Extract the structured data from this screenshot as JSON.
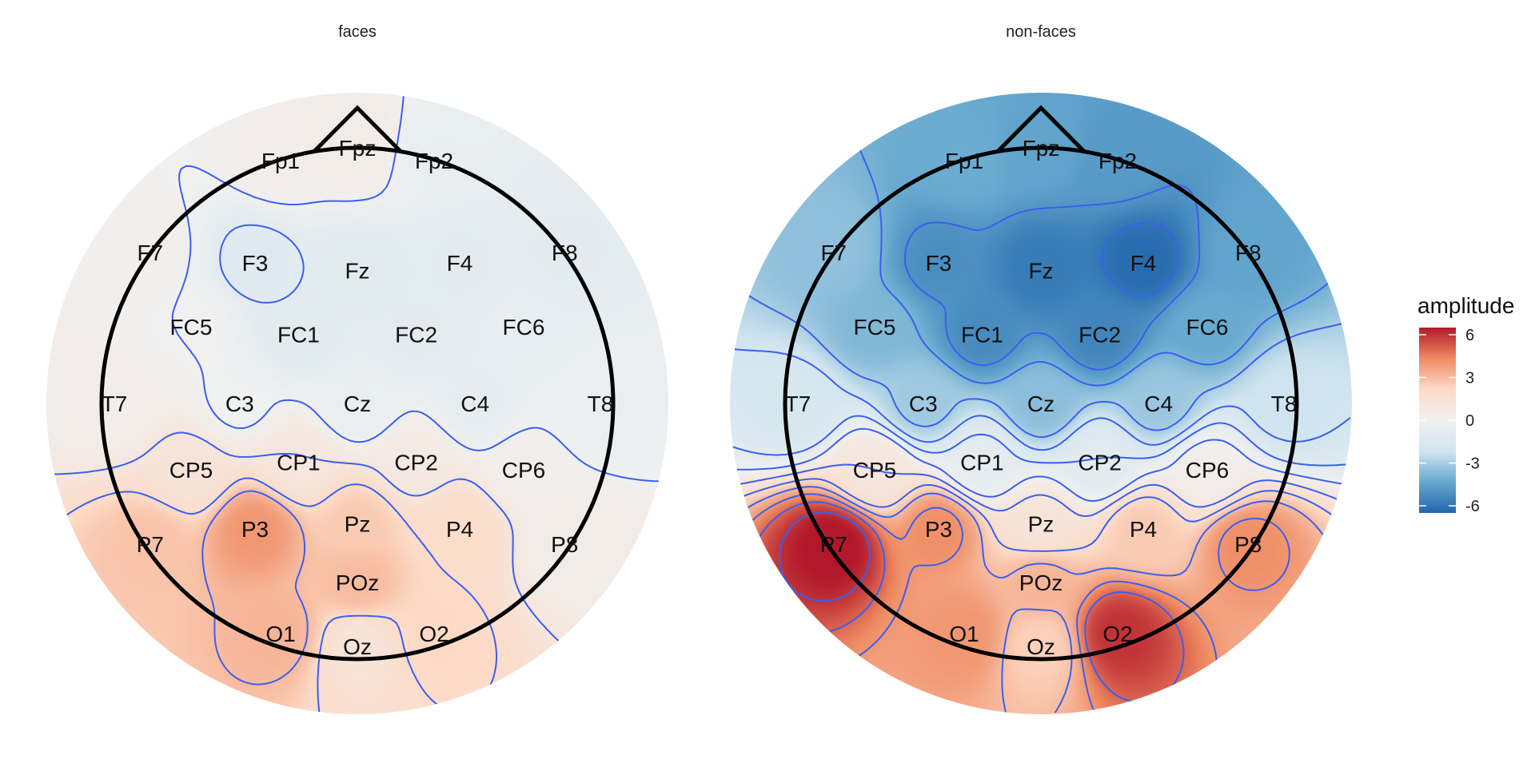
{
  "chart_data": [
    {
      "type": "heatmap",
      "subtype": "eeg-topographic-map",
      "title": "faces",
      "electrodes": [
        {
          "label": "Fp1",
          "x": -0.3,
          "y": 0.95,
          "value": 0.3
        },
        {
          "label": "Fpz",
          "x": 0.0,
          "y": 1.0,
          "value": 0.5
        },
        {
          "label": "Fp2",
          "x": 0.3,
          "y": 0.95,
          "value": -0.5
        },
        {
          "label": "F7",
          "x": -0.81,
          "y": 0.59,
          "value": 0.2
        },
        {
          "label": "F3",
          "x": -0.4,
          "y": 0.55,
          "value": -1.2
        },
        {
          "label": "Fz",
          "x": 0.0,
          "y": 0.52,
          "value": -1.0
        },
        {
          "label": "F4",
          "x": 0.4,
          "y": 0.55,
          "value": -0.9
        },
        {
          "label": "F8",
          "x": 0.81,
          "y": 0.59,
          "value": -0.9
        },
        {
          "label": "FC5",
          "x": -0.65,
          "y": 0.3,
          "value": 0.0
        },
        {
          "label": "FC1",
          "x": -0.23,
          "y": 0.27,
          "value": -1.0
        },
        {
          "label": "FC2",
          "x": 0.23,
          "y": 0.27,
          "value": -0.9
        },
        {
          "label": "FC6",
          "x": 0.65,
          "y": 0.3,
          "value": -0.6
        },
        {
          "label": "T7",
          "x": -0.95,
          "y": 0.0,
          "value": 0.3
        },
        {
          "label": "C3",
          "x": -0.46,
          "y": 0.0,
          "value": -0.1
        },
        {
          "label": "Cz",
          "x": 0.0,
          "y": 0.0,
          "value": -0.5
        },
        {
          "label": "C4",
          "x": 0.46,
          "y": 0.0,
          "value": -0.7
        },
        {
          "label": "T8",
          "x": 0.95,
          "y": 0.0,
          "value": -0.4
        },
        {
          "label": "CP5",
          "x": -0.65,
          "y": -0.26,
          "value": 1.2
        },
        {
          "label": "CP1",
          "x": -0.23,
          "y": -0.23,
          "value": 1.0
        },
        {
          "label": "CP2",
          "x": 0.23,
          "y": -0.23,
          "value": 0.7
        },
        {
          "label": "CP6",
          "x": 0.65,
          "y": -0.26,
          "value": 0.2
        },
        {
          "label": "P7",
          "x": -0.81,
          "y": -0.55,
          "value": 2.8
        },
        {
          "label": "P3",
          "x": -0.4,
          "y": -0.49,
          "value": 4.0
        },
        {
          "label": "Pz",
          "x": 0.0,
          "y": -0.47,
          "value": 2.6
        },
        {
          "label": "P4",
          "x": 0.4,
          "y": -0.49,
          "value": 2.0
        },
        {
          "label": "P8",
          "x": 0.81,
          "y": -0.55,
          "value": 0.4
        },
        {
          "label": "POz",
          "x": 0.0,
          "y": -0.7,
          "value": 3.0
        },
        {
          "label": "O1",
          "x": -0.3,
          "y": -0.9,
          "value": 3.2
        },
        {
          "label": "Oz",
          "x": 0.0,
          "y": -0.95,
          "value": 1.2
        },
        {
          "label": "O2",
          "x": 0.3,
          "y": -0.9,
          "value": 2.2
        }
      ]
    },
    {
      "type": "heatmap",
      "subtype": "eeg-topographic-map",
      "title": "non-faces",
      "electrodes": [
        {
          "label": "Fp1",
          "x": -0.3,
          "y": 0.95,
          "value": -4.2
        },
        {
          "label": "Fpz",
          "x": 0.0,
          "y": 1.0,
          "value": -4.5
        },
        {
          "label": "Fp2",
          "x": 0.3,
          "y": 0.95,
          "value": -4.8
        },
        {
          "label": "F7",
          "x": -0.81,
          "y": 0.59,
          "value": -3.5
        },
        {
          "label": "F3",
          "x": -0.4,
          "y": 0.55,
          "value": -5.2
        },
        {
          "label": "Fz",
          "x": 0.0,
          "y": 0.52,
          "value": -5.8
        },
        {
          "label": "F4",
          "x": 0.4,
          "y": 0.55,
          "value": -6.3
        },
        {
          "label": "F8",
          "x": 0.81,
          "y": 0.59,
          "value": -4.5
        },
        {
          "label": "FC5",
          "x": -0.65,
          "y": 0.3,
          "value": -3.8
        },
        {
          "label": "FC1",
          "x": -0.23,
          "y": 0.27,
          "value": -5.3
        },
        {
          "label": "FC2",
          "x": 0.23,
          "y": 0.27,
          "value": -5.5
        },
        {
          "label": "FC6",
          "x": 0.65,
          "y": 0.3,
          "value": -4.3
        },
        {
          "label": "T7",
          "x": -0.95,
          "y": 0.0,
          "value": -1.8
        },
        {
          "label": "C3",
          "x": -0.46,
          "y": 0.0,
          "value": -3.2
        },
        {
          "label": "Cz",
          "x": 0.0,
          "y": 0.0,
          "value": -3.6
        },
        {
          "label": "C4",
          "x": 0.46,
          "y": 0.0,
          "value": -3.3
        },
        {
          "label": "T8",
          "x": 0.95,
          "y": 0.0,
          "value": -2.2
        },
        {
          "label": "CP5",
          "x": -0.65,
          "y": -0.26,
          "value": 1.0
        },
        {
          "label": "CP1",
          "x": -0.23,
          "y": -0.23,
          "value": -0.8
        },
        {
          "label": "CP2",
          "x": 0.23,
          "y": -0.23,
          "value": -1.0
        },
        {
          "label": "CP6",
          "x": 0.65,
          "y": -0.26,
          "value": 0.3
        },
        {
          "label": "P7",
          "x": -0.81,
          "y": -0.55,
          "value": 6.6
        },
        {
          "label": "P3",
          "x": -0.4,
          "y": -0.49,
          "value": 4.2
        },
        {
          "label": "Pz",
          "x": 0.0,
          "y": -0.47,
          "value": 1.2
        },
        {
          "label": "P4",
          "x": 0.4,
          "y": -0.49,
          "value": 2.6
        },
        {
          "label": "P8",
          "x": 0.81,
          "y": -0.55,
          "value": 4.2
        },
        {
          "label": "POz",
          "x": 0.0,
          "y": -0.7,
          "value": 3.2
        },
        {
          "label": "O1",
          "x": -0.3,
          "y": -0.9,
          "value": 4.0
        },
        {
          "label": "Oz",
          "x": 0.0,
          "y": -0.95,
          "value": 2.4
        },
        {
          "label": "O2",
          "x": 0.3,
          "y": -0.9,
          "value": 6.0
        }
      ]
    }
  ],
  "legend": {
    "title": "amplitude",
    "ticks": [
      "6",
      "3",
      "0",
      "-3",
      "-6"
    ],
    "range": [
      -6.5,
      6.5
    ],
    "placement": "right",
    "colors": {
      "low": "#2166ac",
      "mid_low": "#67a9cf",
      "mid_low2": "#d1e5f0",
      "mid": "#f0f0f0",
      "mid_high2": "#fddbc7",
      "mid_high": "#ef8a62",
      "high": "#b2182b"
    }
  },
  "contour_color": "#3a5ff0",
  "outline_color": "#000000"
}
